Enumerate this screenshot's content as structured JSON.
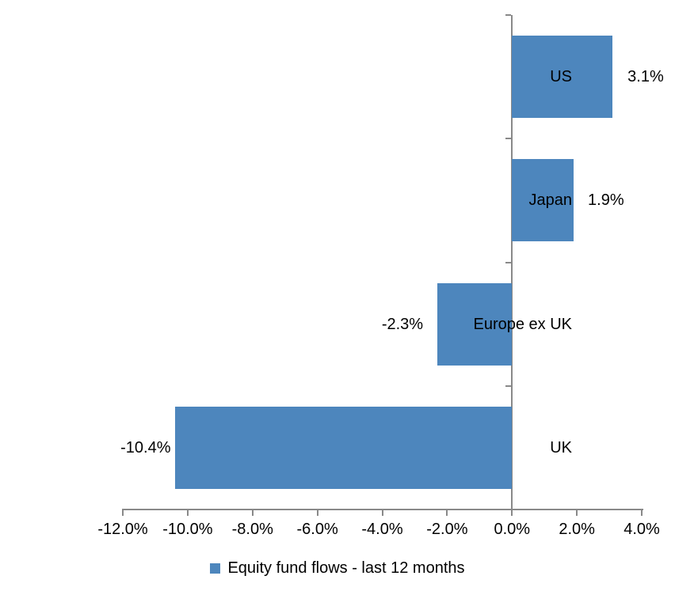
{
  "chart_data": {
    "type": "bar",
    "orientation": "horizontal",
    "title": "",
    "categories": [
      "US",
      "Japan",
      "Europe ex UK",
      "UK"
    ],
    "series": [
      {
        "name": "Equity fund flows - last 12 months",
        "values": [
          3.1,
          1.9,
          -2.3,
          -10.4
        ],
        "data_labels": [
          "3.1%",
          "1.9%",
          "-2.3%",
          "-10.4%"
        ]
      }
    ],
    "x_axis": {
      "range": [
        -12,
        4
      ],
      "tick_step": 2,
      "tick_values": [
        -12,
        -10,
        -8,
        -6,
        -4,
        -2,
        0,
        2,
        4
      ],
      "tick_labels": [
        "-12.0%",
        "-10.0%",
        "-8.0%",
        "-6.0%",
        "-4.0%",
        "-2.0%",
        "0.0%",
        "2.0%",
        "4.0%"
      ]
    },
    "grid": "off",
    "legend": {
      "position": "bottom",
      "label": "Equity fund flows - last 12 months"
    },
    "colors": {
      "bar": "#4D86BD",
      "axis": "#898989",
      "text": "#000000"
    }
  }
}
